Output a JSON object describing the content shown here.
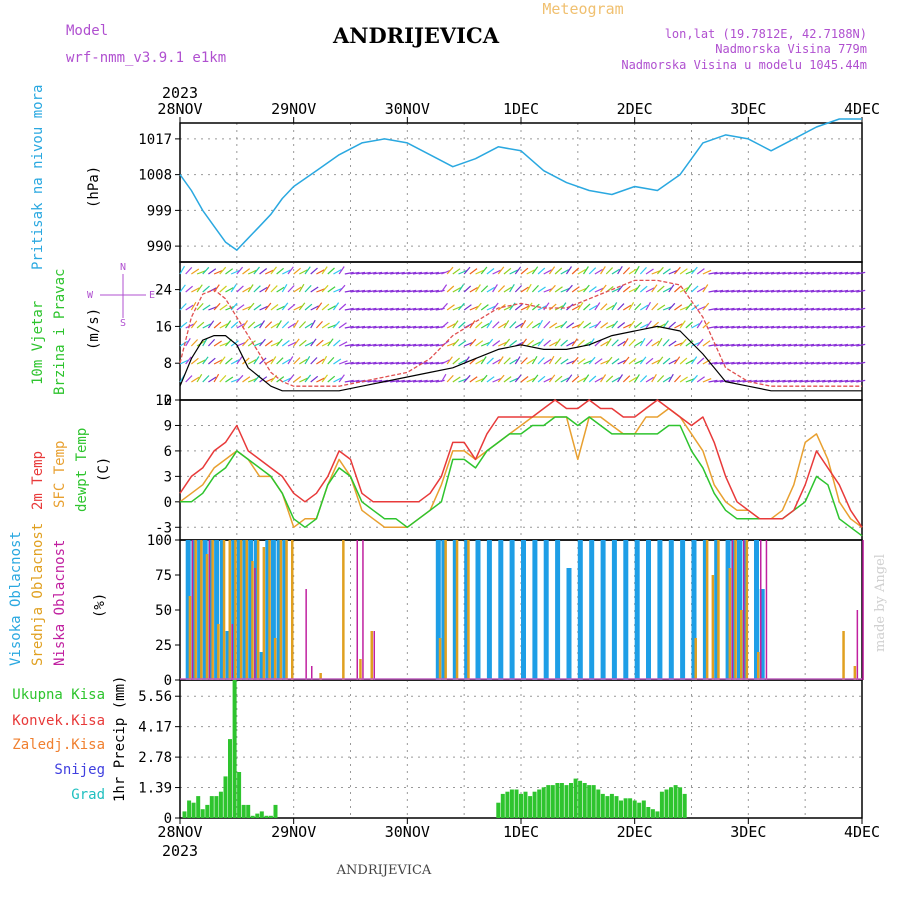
{
  "header": {
    "model_label": "Model",
    "model_name": "wrf-nmm_v3.9.1 e1km",
    "station": "ANDRIJEVICA",
    "product": "Meteogram",
    "lonlat": "lon,lat (19.7812E, 42.7188N)",
    "elevation": "Nadmorska Visina 779m",
    "model_elevation": "Nadmorska Visina u modelu 1045.44m",
    "footer_station": "ANDRIJEVICA",
    "credit": "made by Angel"
  },
  "time_axis": {
    "year": "2023",
    "labels": [
      "28NOV",
      "29NOV",
      "30NOV",
      "1DEC",
      "2DEC",
      "3DEC",
      "4DEC"
    ]
  },
  "colors": {
    "pressure": "#2aa8e0",
    "temp2m": "#e83a3a",
    "sfc_temp": "#e8a030",
    "dewpt": "#2ec42e",
    "wind_speed": "#000000",
    "gust": "#e05050",
    "high_cloud": "#1e9ee6",
    "mid_cloud": "#e0a020",
    "low_cloud": "#c020a0",
    "precip_total": "#2ec42e",
    "precip_conv": "#e83a3a",
    "precip_frz": "#f08030",
    "snow": "#4040e0",
    "grad": "#20c0c0"
  },
  "chart_data": [
    {
      "type": "line",
      "id": "pressure",
      "ylabel_series": "Pritisak na nivou mora",
      "unit": "(hPa)",
      "yticks": [
        990,
        999,
        1008,
        1017
      ],
      "ylim": [
        986,
        1021
      ],
      "x_days": [
        0,
        0.1,
        0.2,
        0.3,
        0.4,
        0.5,
        0.6,
        0.7,
        0.8,
        0.9,
        1,
        1.2,
        1.4,
        1.6,
        1.8,
        2,
        2.2,
        2.4,
        2.6,
        2.8,
        3,
        3.2,
        3.4,
        3.6,
        3.8,
        4,
        4.2,
        4.4,
        4.6,
        4.8,
        5,
        5.2,
        5.4,
        5.6,
        5.8,
        6
      ],
      "series": [
        {
          "name": "Pritisak na nivou mora",
          "values": [
            1008,
            1004,
            999,
            995,
            991,
            989,
            992,
            995,
            998,
            1002,
            1005,
            1009,
            1013,
            1016,
            1017,
            1016,
            1013,
            1010,
            1012,
            1015,
            1014,
            1009,
            1006,
            1004,
            1003,
            1005,
            1004,
            1008,
            1016,
            1018,
            1017,
            1014,
            1017,
            1020,
            1022,
            1022
          ]
        }
      ]
    },
    {
      "type": "line",
      "id": "wind",
      "ylabel_series": [
        "10m Vjetar",
        "Brzina i Pravac"
      ],
      "unit": "(m/s)",
      "yticks": [
        0,
        8,
        16,
        24
      ],
      "ylim": [
        0,
        30
      ],
      "compass": [
        "N",
        "E",
        "S",
        "W"
      ],
      "x_days": [
        0,
        0.1,
        0.2,
        0.3,
        0.4,
        0.5,
        0.6,
        0.7,
        0.8,
        0.9,
        1,
        1.2,
        1.4,
        1.6,
        1.8,
        2,
        2.2,
        2.4,
        2.6,
        2.8,
        3,
        3.2,
        3.4,
        3.6,
        3.8,
        4,
        4.2,
        4.4,
        4.6,
        4.8,
        5,
        5.2,
        5.4,
        5.6,
        5.8,
        6
      ],
      "series": [
        {
          "name": "speed",
          "values": [
            3,
            9,
            13,
            14,
            14,
            12,
            7,
            5,
            3,
            2,
            2,
            2,
            2,
            3,
            4,
            5,
            6,
            7,
            9,
            11,
            12,
            11,
            11,
            12,
            14,
            15,
            16,
            15,
            10,
            4,
            3,
            2,
            2,
            2,
            2,
            2
          ]
        },
        {
          "name": "gust",
          "values": [
            8,
            18,
            23,
            24,
            22,
            18,
            14,
            10,
            6,
            4,
            3,
            3,
            3,
            4,
            5,
            6,
            9,
            14,
            17,
            20,
            21,
            20,
            20,
            22,
            24,
            26,
            26,
            25,
            18,
            7,
            4,
            3,
            3,
            3,
            3,
            3
          ]
        }
      ]
    },
    {
      "type": "line",
      "id": "temperature",
      "ylabel_series": [
        "2m Temp",
        "SFC Temp",
        "dewpt Temp"
      ],
      "unit": "(C)",
      "yticks": [
        -3,
        0,
        3,
        6,
        9,
        12
      ],
      "ylim": [
        -4.5,
        12
      ],
      "x_days": [
        0,
        0.1,
        0.2,
        0.3,
        0.4,
        0.5,
        0.6,
        0.7,
        0.8,
        0.9,
        1,
        1.1,
        1.2,
        1.3,
        1.4,
        1.5,
        1.6,
        1.7,
        1.8,
        1.9,
        2,
        2.1,
        2.2,
        2.3,
        2.4,
        2.5,
        2.6,
        2.7,
        2.8,
        2.9,
        3,
        3.1,
        3.2,
        3.3,
        3.4,
        3.5,
        3.6,
        3.7,
        3.8,
        3.9,
        4,
        4.1,
        4.2,
        4.3,
        4.4,
        4.5,
        4.6,
        4.7,
        4.8,
        4.9,
        5,
        5.1,
        5.2,
        5.3,
        5.4,
        5.5,
        5.6,
        5.7,
        5.8,
        5.9,
        6
      ],
      "series": [
        {
          "name": "2m Temp",
          "values": [
            1,
            3,
            4,
            6,
            7,
            9,
            6,
            5,
            4,
            3,
            1,
            0,
            1,
            3,
            6,
            5,
            1,
            0,
            0,
            0,
            0,
            0,
            1,
            3,
            7,
            7,
            5,
            8,
            10,
            10,
            10,
            10,
            11,
            12,
            11,
            11,
            12,
            11,
            11,
            10,
            10,
            11,
            12,
            11,
            10,
            9,
            10,
            7,
            3,
            0,
            -1,
            -2,
            -2,
            -2,
            -1,
            2,
            6,
            4,
            2,
            -1,
            -3
          ]
        },
        {
          "name": "SFC Temp",
          "values": [
            0,
            1,
            2,
            4,
            5,
            6,
            5,
            3,
            3,
            1,
            -3,
            -2,
            -2,
            2,
            5,
            3,
            -1,
            -2,
            -3,
            -3,
            -3,
            -2,
            -1,
            2,
            6,
            6,
            5,
            6,
            7,
            8,
            9,
            10,
            10,
            10,
            10,
            5,
            10,
            10,
            9,
            8,
            8,
            10,
            10,
            11,
            10,
            8,
            6,
            2,
            0,
            -1,
            -1,
            -2,
            -2,
            -1,
            2,
            7,
            8,
            5,
            0,
            -2,
            -3
          ]
        },
        {
          "name": "dewpt Temp",
          "values": [
            0,
            0,
            1,
            3,
            4,
            6,
            5,
            4,
            3,
            1,
            -2,
            -3,
            -2,
            2,
            4,
            3,
            0,
            -1,
            -2,
            -2,
            -3,
            -2,
            -1,
            0,
            5,
            5,
            4,
            6,
            7,
            8,
            8,
            9,
            9,
            10,
            10,
            9,
            10,
            9,
            8,
            8,
            8,
            8,
            8,
            9,
            9,
            6,
            4,
            1,
            -1,
            -2,
            -2,
            -2,
            -2,
            -2,
            -1,
            0,
            3,
            2,
            -2,
            -3,
            -4
          ]
        }
      ]
    },
    {
      "type": "bar",
      "id": "cloud",
      "ylabel_series": [
        "Visoka Oblacnost",
        "Srednja Oblacnost",
        "Niska Oblacnost"
      ],
      "unit": "(%)",
      "yticks": [
        0,
        25,
        50,
        75,
        100
      ],
      "ylim": [
        0,
        100
      ],
      "x_days": [
        0.05,
        0.1,
        0.15,
        0.2,
        0.25,
        0.3,
        0.35,
        0.4,
        0.45,
        0.5,
        0.55,
        0.6,
        0.65,
        0.7,
        0.75,
        0.8,
        0.85,
        0.9,
        0.95,
        1.05,
        1.1,
        1.2,
        1.4,
        1.5,
        1.55,
        1.65,
        2.2,
        2.25,
        2.3,
        2.4,
        2.5,
        2.6,
        2.7,
        2.8,
        2.9,
        3,
        3.1,
        3.2,
        3.3,
        3.4,
        3.5,
        3.6,
        3.7,
        3.8,
        3.9,
        4,
        4.1,
        4.2,
        4.3,
        4.4,
        4.5,
        4.6,
        4.65,
        4.7,
        4.8,
        4.85,
        4.9,
        4.95,
        5.05,
        5.1,
        5.3,
        5.4,
        5.5,
        5.6,
        5.7,
        5.8,
        5.9,
        5.95
      ],
      "series": [
        {
          "name": "Visoka Oblacnost",
          "values": [
            100,
            100,
            100,
            100,
            100,
            100,
            100,
            35,
            100,
            100,
            100,
            100,
            100,
            20,
            100,
            100,
            100,
            100,
            0,
            0,
            0,
            0,
            0,
            0,
            0,
            0,
            0,
            100,
            100,
            100,
            100,
            100,
            100,
            100,
            100,
            100,
            100,
            100,
            100,
            80,
            100,
            100,
            100,
            100,
            100,
            100,
            100,
            100,
            100,
            100,
            100,
            100,
            0,
            100,
            100,
            100,
            100,
            100,
            100,
            65,
            0,
            0,
            0,
            0,
            0,
            0,
            0,
            0
          ]
        },
        {
          "name": "Srednja Oblacnost",
          "values": [
            60,
            100,
            100,
            90,
            100,
            40,
            100,
            100,
            100,
            100,
            100,
            85,
            100,
            95,
            100,
            30,
            100,
            100,
            100,
            0,
            0,
            5,
            100,
            0,
            15,
            35,
            0,
            30,
            100,
            100,
            100,
            0,
            0,
            0,
            0,
            0,
            0,
            0,
            0,
            0,
            0,
            0,
            0,
            0,
            0,
            0,
            0,
            0,
            0,
            0,
            30,
            100,
            75,
            100,
            80,
            100,
            50,
            100,
            20,
            0,
            0,
            0,
            0,
            0,
            0,
            35,
            10,
            0
          ]
        },
        {
          "name": "Niska Oblacnost",
          "values": [
            100,
            0,
            0,
            100,
            0,
            0,
            0,
            40,
            0,
            0,
            0,
            80,
            0,
            0,
            0,
            0,
            0,
            0,
            0,
            65,
            10,
            0,
            0,
            100,
            100,
            35,
            0,
            0,
            0,
            0,
            0,
            0,
            0,
            0,
            0,
            0,
            0,
            0,
            0,
            0,
            0,
            0,
            0,
            0,
            0,
            0,
            0,
            0,
            0,
            0,
            0,
            0,
            0,
            0,
            100,
            0,
            100,
            0,
            100,
            100,
            0,
            0,
            0,
            0,
            0,
            0,
            50,
            100
          ]
        }
      ]
    },
    {
      "type": "bar",
      "id": "precip",
      "ylabel_series": [
        "Ukupna Kisa",
        "Konvek.Kisa",
        "Zaledj.Kisa",
        "Snijeg",
        "Grad"
      ],
      "unit": "1hr Precip (mm)",
      "yticks": [
        0,
        1.39,
        2.78,
        4.17,
        5.56
      ],
      "ylim": [
        0,
        6.3
      ],
      "x_days": [
        0.04,
        0.08,
        0.12,
        0.16,
        0.2,
        0.24,
        0.28,
        0.32,
        0.36,
        0.4,
        0.44,
        0.48,
        0.52,
        0.56,
        0.6,
        0.64,
        0.68,
        0.72,
        0.76,
        0.8,
        0.84,
        2.8,
        2.84,
        2.88,
        2.92,
        2.96,
        3,
        3.04,
        3.08,
        3.12,
        3.16,
        3.2,
        3.24,
        3.28,
        3.32,
        3.36,
        3.4,
        3.44,
        3.48,
        3.52,
        3.56,
        3.6,
        3.64,
        3.68,
        3.72,
        3.76,
        3.8,
        3.84,
        3.88,
        3.92,
        3.96,
        4,
        4.04,
        4.08,
        4.12,
        4.16,
        4.2,
        4.24,
        4.28,
        4.32,
        4.36,
        4.4,
        4.44
      ],
      "series": [
        {
          "name": "Ukupna Kisa",
          "values": [
            0.3,
            0.8,
            0.7,
            1,
            0.4,
            0.6,
            1,
            1,
            1.2,
            1.9,
            3.6,
            6.3,
            2.1,
            0.6,
            0.6,
            0.1,
            0.2,
            0.3,
            0.1,
            0.1,
            0.6,
            0.7,
            1.1,
            1.2,
            1.3,
            1.3,
            1.1,
            1.2,
            1.0,
            1.2,
            1.3,
            1.4,
            1.5,
            1.5,
            1.6,
            1.6,
            1.5,
            1.6,
            1.8,
            1.7,
            1.6,
            1.5,
            1.5,
            1.3,
            1.1,
            1.0,
            1.1,
            1.0,
            0.8,
            0.9,
            0.9,
            0.8,
            0.7,
            0.8,
            0.5,
            0.4,
            0.3,
            1.2,
            1.3,
            1.4,
            1.5,
            1.4,
            1.1
          ]
        }
      ]
    }
  ]
}
